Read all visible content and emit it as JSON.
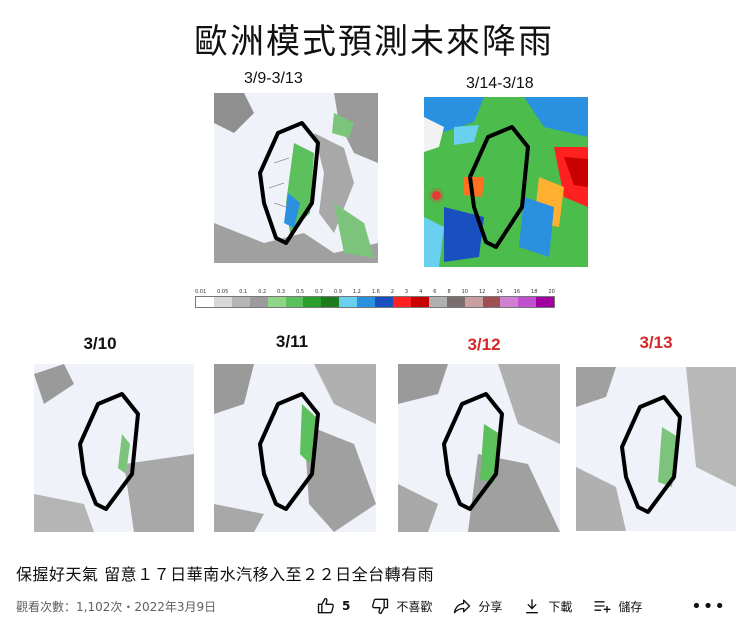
{
  "slide": {
    "title": "歐洲模式預測未來降雨",
    "periods": [
      {
        "label": "3/9-3/13"
      },
      {
        "label": "3/14-3/18"
      }
    ],
    "scale_ticks": [
      "0.01",
      "0.05",
      "0.1",
      "0.2",
      "0.3",
      "0.5",
      "0.7",
      "0.9",
      "1.2",
      "1.6",
      "2",
      "3",
      "4",
      "6",
      "8",
      "10",
      "12",
      "14",
      "16",
      "18",
      "20"
    ],
    "scale_colors": [
      "#ffffff",
      "#d8d8d8",
      "#b5b5b5",
      "#9c9c9c",
      "#8fd68a",
      "#5cc05c",
      "#2aa02a",
      "#1e7a1e",
      "#6ad0f0",
      "#2a90e0",
      "#1a4fc0",
      "#ff2020",
      "#c80000",
      "#b0b0b0",
      "#7a6e6e",
      "#c8a0a0",
      "#a05050",
      "#d080d0",
      "#c050d0",
      "#a000a0"
    ],
    "days": [
      {
        "label": "3/10",
        "highlight": false
      },
      {
        "label": "3/11",
        "highlight": false
      },
      {
        "label": "3/12",
        "highlight": true
      },
      {
        "label": "3/13",
        "highlight": true
      }
    ]
  },
  "video": {
    "title": "保握好天氣 留意１７日華南水汽移入至２２日全台轉有雨",
    "views": "觀看次數：1,102次",
    "date": "2022年3月9日",
    "actions": {
      "like_count": "5",
      "dislike": "不喜歡",
      "share": "分享",
      "download": "下載",
      "save": "儲存"
    }
  }
}
